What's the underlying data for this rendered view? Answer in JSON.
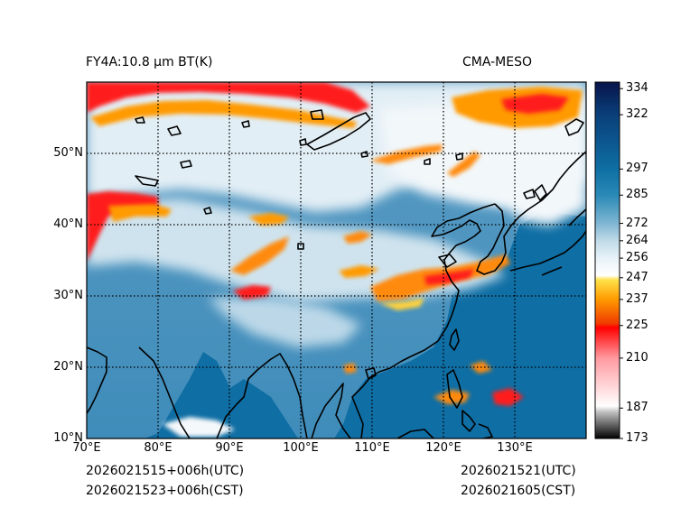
{
  "title_left": "FY4A:10.8 µm BT(K)",
  "title_right": "CMA-MESO",
  "footer": {
    "init_utc": "2026021515+006h(UTC)",
    "init_cst": "2026021523+006h(CST)",
    "valid_utc": "2026021521(UTC)",
    "valid_cst": "2026021605(CST)"
  },
  "map": {
    "lon_range": [
      70,
      140
    ],
    "lat_range": [
      10,
      60
    ],
    "lon_ticks": [
      {
        "value": 70,
        "label": "70°E"
      },
      {
        "value": 80,
        "label": "80°E"
      },
      {
        "value": 90,
        "label": "90°E"
      },
      {
        "value": 100,
        "label": "100°E"
      },
      {
        "value": 110,
        "label": "110°E"
      },
      {
        "value": 120,
        "label": "120°E"
      },
      {
        "value": 130,
        "label": "130°E"
      }
    ],
    "lat_ticks": [
      {
        "value": 10,
        "label": "10°N"
      },
      {
        "value": 20,
        "label": "20°N"
      },
      {
        "value": 30,
        "label": "30°N"
      },
      {
        "value": 40,
        "label": "40°N"
      },
      {
        "value": 50,
        "label": "50°N"
      }
    ]
  },
  "colorbar": {
    "range": [
      173,
      337
    ],
    "ticks": [
      {
        "value": 334,
        "label": "334"
      },
      {
        "value": 322,
        "label": "322"
      },
      {
        "value": 297,
        "label": "297"
      },
      {
        "value": 285,
        "label": "285"
      },
      {
        "value": 272,
        "label": "272"
      },
      {
        "value": 264,
        "label": "264"
      },
      {
        "value": 256,
        "label": "256"
      },
      {
        "value": 247,
        "label": "247"
      },
      {
        "value": 237,
        "label": "237"
      },
      {
        "value": 225,
        "label": "225"
      },
      {
        "value": 210,
        "label": "210"
      },
      {
        "value": 187,
        "label": "187"
      },
      {
        "value": 173,
        "label": "173"
      }
    ],
    "stops": [
      {
        "value": 173,
        "color": "#000000"
      },
      {
        "value": 185,
        "color": "#bdbdbd"
      },
      {
        "value": 188,
        "color": "#ffffff"
      },
      {
        "value": 210,
        "color": "#ff9aa0"
      },
      {
        "value": 224,
        "color": "#ff0000"
      },
      {
        "value": 226,
        "color": "#f03c00"
      },
      {
        "value": 237,
        "color": "#ff9a00"
      },
      {
        "value": 246,
        "color": "#ffe24a"
      },
      {
        "value": 248,
        "color": "#ffffff"
      },
      {
        "value": 256,
        "color": "#e8f2f8"
      },
      {
        "value": 264,
        "color": "#c0dbe8"
      },
      {
        "value": 272,
        "color": "#7fb6d3"
      },
      {
        "value": 285,
        "color": "#2a89b6"
      },
      {
        "value": 297,
        "color": "#0e6fa3"
      },
      {
        "value": 322,
        "color": "#0a3f7a"
      },
      {
        "value": 337,
        "color": "#08144a"
      }
    ]
  },
  "colors": {
    "ocean": "#0f6ea4",
    "clear_land": "#4d97c0",
    "cloud_light": "#d8e8f2",
    "cloud_white": "#f4f8fb",
    "cold_top_orange": "#ff8a10",
    "cold_top_red": "#ff1a1a",
    "cold_top_yellow": "#ffd23c",
    "coastline": "#000000"
  }
}
